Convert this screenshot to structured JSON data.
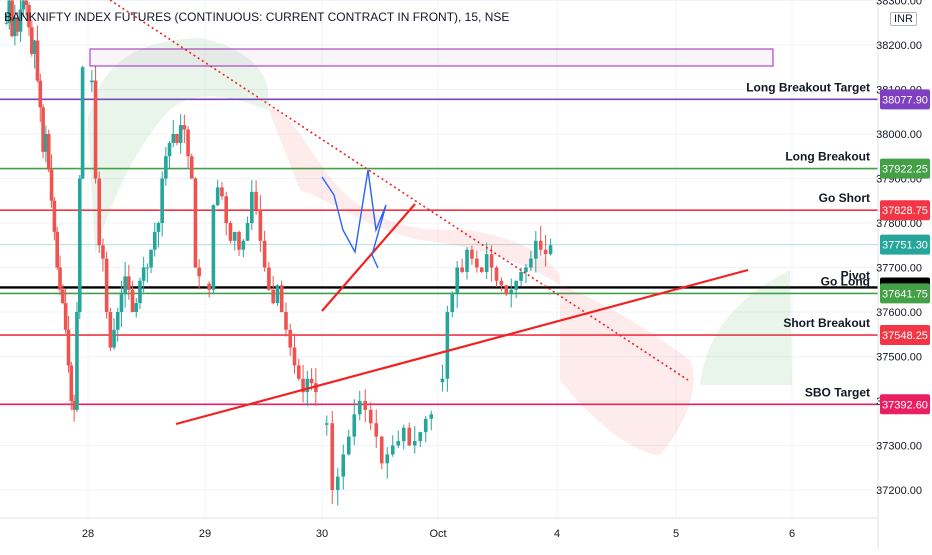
{
  "chart_data": {
    "type": "candlestick",
    "title": "BANKNIFTY INDEX FUTURES (CONTINUOUS: CURRENT CONTRACT IN FRONT), 15, NSE",
    "currency": "INR",
    "x_tick_labels": [
      "28",
      "29",
      "30",
      "Oct",
      "4",
      "5",
      "6"
    ],
    "y_ticks": [
      37200,
      37300,
      37400,
      37500,
      37600,
      37700,
      37800,
      37900,
      38000,
      38100,
      38200,
      38300
    ],
    "y_tick_labels": [
      "37200.00",
      "37300.00",
      "37400.00",
      "37500.00",
      "37600.00",
      "37700.00",
      "37800.00",
      "37900.00",
      "38000.00",
      "38100.00",
      "38200.00",
      "38300.00"
    ],
    "ylim": [
      37140,
      38310
    ],
    "levels": [
      {
        "label": "Long Breakout Target",
        "value": "38077.90",
        "color": "#7e3fc0"
      },
      {
        "label": "Long Breakout",
        "value": "37922.25",
        "color": "#43a047"
      },
      {
        "label": "Go Short",
        "value": "37828.75",
        "color": "#f23645"
      },
      {
        "label": "",
        "value": "37751.30",
        "color": "#26a69a"
      },
      {
        "label": "Pivot",
        "value": "37655.10",
        "color": "#000000"
      },
      {
        "label": "Go Long",
        "value": "37641.75",
        "color": "#43a047"
      },
      {
        "label": "Short Breakout",
        "value": "37548.25",
        "color": "#f23645"
      },
      {
        "label": "SBO Target",
        "value": "37392.60",
        "color": "#e91e63"
      }
    ],
    "session_closes": [
      [
        38250,
        38300,
        38220,
        38260,
        38230,
        38280,
        38300,
        38290,
        38240,
        38180,
        38210,
        38120,
        38060,
        37960,
        38000,
        37920,
        37850,
        37780,
        37700,
        37650,
        37620,
        37560,
        37480,
        37400,
        37380,
        37600,
        37900,
        38150
      ],
      [
        38120,
        37900,
        37750,
        37720,
        37600,
        37520,
        37560,
        37600,
        37640,
        37680,
        37650,
        37600,
        37620,
        37670,
        37700,
        37700,
        37740,
        37780,
        37800,
        37900,
        37950,
        37980,
        38000,
        37980,
        38020,
        38010,
        37950,
        37900,
        37700,
        37680
      ],
      [
        37650,
        37840,
        37880,
        37860,
        37800,
        37760,
        37780,
        37740,
        37760,
        37800,
        37870,
        37830,
        37760,
        37700,
        37650,
        37620,
        37660,
        37600,
        37560,
        37520,
        37480,
        37450,
        37420,
        37450,
        37440,
        37420
      ],
      [
        37350,
        37200,
        37230,
        37280,
        37320,
        37370,
        37400,
        37380,
        37350,
        37320,
        37260,
        37280,
        37300,
        37310,
        37340,
        37300,
        37310,
        37330,
        37360,
        37370
      ],
      [
        37450,
        37600,
        37640,
        37700,
        37690,
        37740,
        37720,
        37700,
        37690,
        37730,
        37700,
        37670,
        37660,
        37640,
        37650,
        37670,
        37690,
        37700,
        37720,
        37760,
        37740,
        37730,
        37750
      ],
      [],
      []
    ]
  }
}
